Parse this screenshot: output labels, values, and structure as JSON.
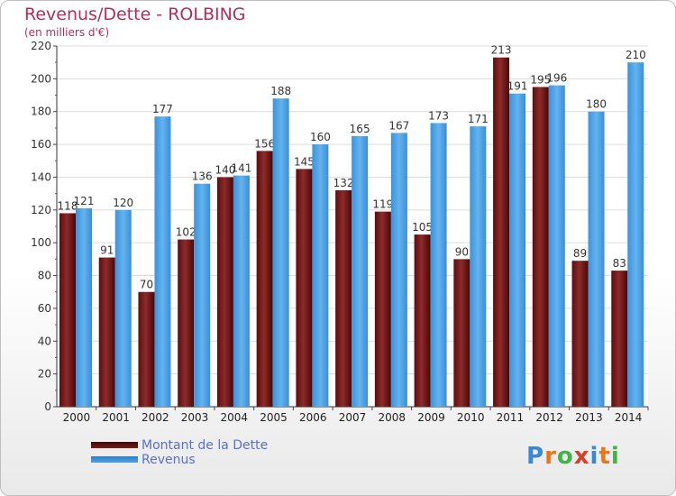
{
  "header": {
    "title": "Revenus/Dette - ROLBING",
    "subtitle": "(en milliers d'€)"
  },
  "legend": {
    "items": [
      {
        "label": "Montant de la Dette",
        "color": "#7a1a1a"
      },
      {
        "label": "Revenus",
        "color": "#4ea3e4"
      }
    ]
  },
  "logo": {
    "text": "Proxiti",
    "colors": [
      "#3a86d8",
      "#e8761c",
      "#46b14a",
      "#d8402c",
      "#3a86d8",
      "#e8761c",
      "#46b14a"
    ]
  },
  "chart_data": {
    "type": "bar",
    "categories": [
      "2000",
      "2001",
      "2002",
      "2003",
      "2004",
      "2005",
      "2006",
      "2007",
      "2008",
      "2009",
      "2010",
      "2011",
      "2012",
      "2013",
      "2014"
    ],
    "series": [
      {
        "name": "Montant de la Dette",
        "color": "#7a1a1a",
        "values": [
          118,
          91,
          70,
          102,
          140,
          156,
          145,
          132,
          119,
          105,
          90,
          213,
          195,
          89,
          83
        ]
      },
      {
        "name": "Revenus",
        "color": "#4ea3e4",
        "values": [
          121,
          120,
          177,
          136,
          141,
          188,
          160,
          165,
          167,
          173,
          171,
          191,
          196,
          180,
          210
        ]
      }
    ],
    "ylim": [
      0,
      220
    ],
    "yticks": [
      0,
      20,
      40,
      60,
      80,
      100,
      120,
      140,
      160,
      180,
      200,
      220
    ],
    "grid": true,
    "legend_position": "bottom-left"
  }
}
